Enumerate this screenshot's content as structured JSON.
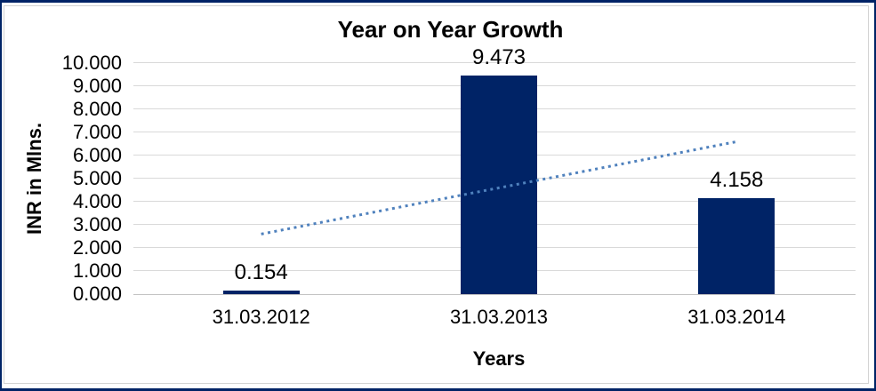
{
  "frame": {
    "outer_border_color": "#002366",
    "inner_border_color": "#d4d4d4",
    "gridline_color": "#d9d9d9",
    "axis_line_color": "#c3c3c3"
  },
  "chart_data": {
    "type": "bar",
    "title": "Year on Year Growth",
    "xlabel": "Years",
    "ylabel": "INR in Mlns.",
    "categories": [
      "31.03.2012",
      "31.03.2013",
      "31.03.2014"
    ],
    "values": [
      0.154,
      9.473,
      4.158
    ],
    "data_labels": [
      "0.154",
      "9.473",
      "4.158"
    ],
    "ylim": [
      0,
      10
    ],
    "ytick_step": 1,
    "ytick_labels": [
      "0.000",
      "1.000",
      "2.000",
      "3.000",
      "4.000",
      "5.000",
      "6.000",
      "7.000",
      "8.000",
      "9.000",
      "10.000"
    ],
    "grid": true,
    "legend_position": "none",
    "bar_color": "#002366",
    "trendline": {
      "type": "linear",
      "style": "dotted",
      "color": "#4F81BD",
      "start_value": 2.6,
      "end_value": 6.6
    }
  }
}
